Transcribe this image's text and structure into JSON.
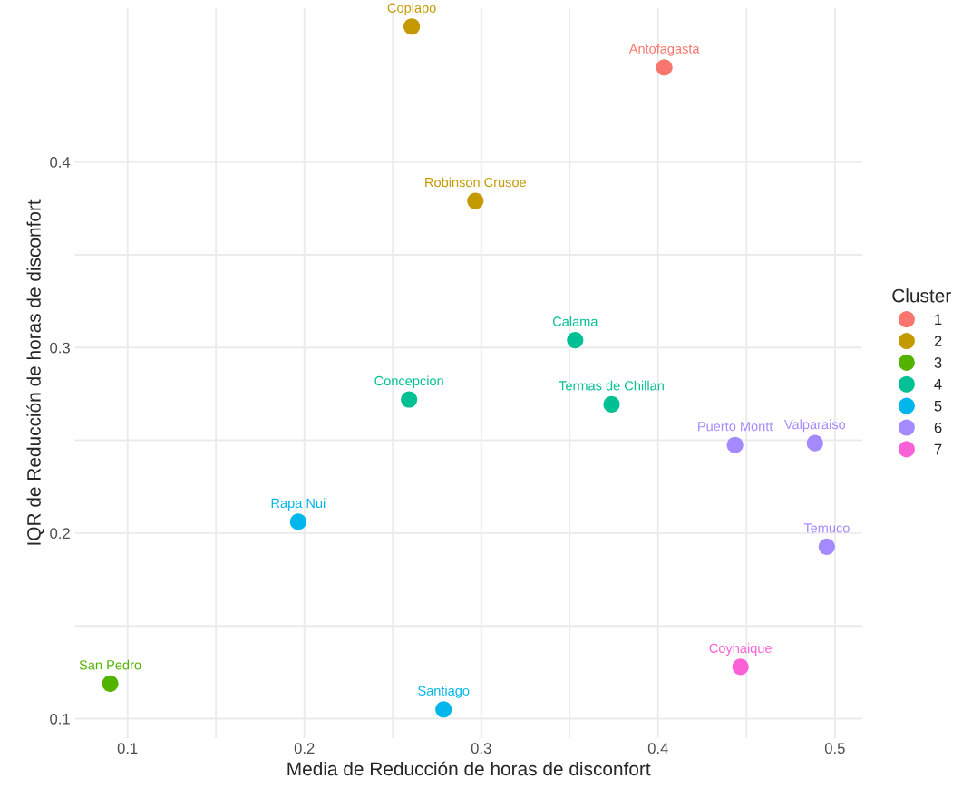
{
  "chart_data": {
    "type": "scatter",
    "xlabel": "Media de Reducción de horas de disconfort",
    "ylabel": "IQR de Reducción de horas de disconfort",
    "legend_title": "Cluster",
    "legend": "right",
    "grid": true,
    "marker": "circle",
    "xlim": [
      0.0702,
      0.5154
    ],
    "ylim": [
      0.0895,
      0.483
    ],
    "xticks": [
      0.1,
      0.2,
      0.3,
      0.4,
      0.5
    ],
    "yticks": [
      0.1,
      0.2,
      0.3,
      0.4
    ],
    "series": [
      {
        "name": "1",
        "color": "#F8766D",
        "x": [
          0.4035
        ],
        "values": [
          0.451
        ]
      },
      {
        "name": "2",
        "color": "#C49A00",
        "x": [
          0.2607,
          0.2967
        ],
        "values": [
          0.473,
          0.379
        ]
      },
      {
        "name": "3",
        "color": "#53B400",
        "x": [
          0.0902
        ],
        "values": [
          0.1189
        ]
      },
      {
        "name": "4",
        "color": "#00C094",
        "x": [
          0.3531,
          0.2592,
          0.3737
        ],
        "values": [
          0.304,
          0.272,
          0.2694
        ]
      },
      {
        "name": "5",
        "color": "#00B6EB",
        "x": [
          0.1965,
          0.2787
        ],
        "values": [
          0.2061,
          0.105
        ]
      },
      {
        "name": "6",
        "color": "#A58AFF",
        "x": [
          0.4435,
          0.4887,
          0.4954
        ],
        "values": [
          0.2475,
          0.2485,
          0.1927
        ]
      },
      {
        "name": "7",
        "color": "#FB61D7",
        "x": [
          0.4466
        ],
        "values": [
          0.1279
        ]
      }
    ],
    "annotations": [
      {
        "text": "Antofagasta",
        "x": 0.4035,
        "y": 0.451
      },
      {
        "text": "Copiapo",
        "x": 0.2607,
        "y": 0.473
      },
      {
        "text": "Robinson Crusoe",
        "x": 0.2967,
        "y": 0.379
      },
      {
        "text": "San Pedro",
        "x": 0.0902,
        "y": 0.1189
      },
      {
        "text": "Calama",
        "x": 0.3531,
        "y": 0.304
      },
      {
        "text": "Concepcion",
        "x": 0.2592,
        "y": 0.272
      },
      {
        "text": "Termas de Chillan",
        "x": 0.3737,
        "y": 0.2694
      },
      {
        "text": "Rapa Nui",
        "x": 0.1965,
        "y": 0.2061
      },
      {
        "text": "Santiago",
        "x": 0.2787,
        "y": 0.105
      },
      {
        "text": "Puerto Montt",
        "x": 0.4435,
        "y": 0.2475
      },
      {
        "text": "Valparaiso",
        "x": 0.4887,
        "y": 0.2485
      },
      {
        "text": "Temuco",
        "x": 0.4954,
        "y": 0.1927
      },
      {
        "text": "Coyhaique",
        "x": 0.4466,
        "y": 0.1279
      }
    ]
  }
}
